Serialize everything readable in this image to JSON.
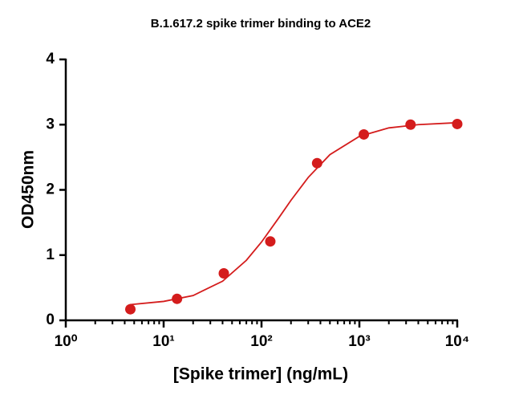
{
  "chart_data": {
    "type": "scatter",
    "title": "B.1.617.2 spike trimer binding to ACE2",
    "x_label": "[Spike trimer] (ng/mL)",
    "y_label": "OD450nm",
    "x_scale": "log",
    "xlim": [
      1,
      10000
    ],
    "ylim": [
      0,
      4
    ],
    "xticks": [
      {
        "value": 1,
        "label": "10⁰"
      },
      {
        "value": 10,
        "label": "10¹"
      },
      {
        "value": 100,
        "label": "10²"
      },
      {
        "value": 1000,
        "label": "10³"
      },
      {
        "value": 10000,
        "label": "10⁴"
      }
    ],
    "xminor_ticks": [
      2,
      3,
      4,
      5,
      6,
      7,
      8,
      9,
      20,
      30,
      40,
      50,
      60,
      70,
      80,
      90,
      200,
      300,
      400,
      500,
      600,
      700,
      800,
      900,
      2000,
      3000,
      4000,
      5000,
      6000,
      7000,
      8000,
      9000
    ],
    "yticks": [
      0,
      1,
      2,
      3,
      4
    ],
    "series": [
      {
        "type": "scatter",
        "color": "#d41c1c",
        "x": [
          4.57,
          13.7,
          41.2,
          123,
          370,
          1111,
          3333,
          10000
        ],
        "values": [
          0.17,
          0.33,
          0.72,
          1.21,
          2.41,
          2.85,
          3.0,
          3.01
        ]
      },
      {
        "type": "line",
        "color": "#d41c1c",
        "x": [
          4.5,
          10,
          20,
          40,
          70,
          100,
          150,
          200,
          300,
          500,
          1000,
          2000,
          4000,
          10000
        ],
        "values": [
          0.24,
          0.29,
          0.38,
          0.6,
          0.92,
          1.2,
          1.57,
          1.84,
          2.19,
          2.54,
          2.82,
          2.95,
          3.0,
          3.03
        ]
      }
    ]
  }
}
